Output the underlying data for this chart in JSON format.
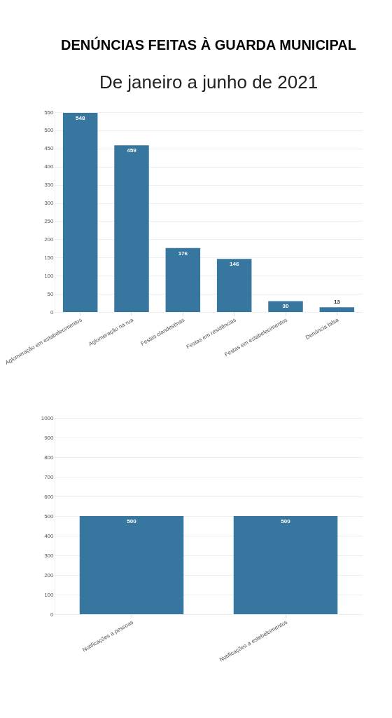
{
  "chart_data": [
    {
      "type": "bar",
      "title": "DENÚNCIAS FEITAS À GUARDA MUNICIPAL",
      "subtitle": "De janeiro a junho de 2021",
      "categories": [
        "Aglomeração em estabelecimentos",
        "Aglomeração na rua",
        "Festas clandestinas",
        "Festas em residências",
        "Festas em estabelecimentos",
        "Denúncia falsa"
      ],
      "values": [
        548,
        459,
        176,
        146,
        30,
        13
      ],
      "color": "#36769f",
      "ylim": [
        0,
        550
      ],
      "yticks": [
        0,
        50,
        100,
        150,
        200,
        250,
        300,
        350,
        400,
        450,
        500,
        550
      ],
      "grid": "y",
      "data_labels": true
    },
    {
      "type": "bar",
      "categories": [
        "Notificações a pessoas",
        "Notificações a estebelcimentos"
      ],
      "values": [
        500,
        500
      ],
      "color": "#36769f",
      "ylim": [
        0,
        1000
      ],
      "yticks": [
        0,
        100,
        200,
        300,
        400,
        500,
        600,
        700,
        800,
        900,
        1000
      ],
      "grid": "y",
      "data_labels": true
    }
  ]
}
